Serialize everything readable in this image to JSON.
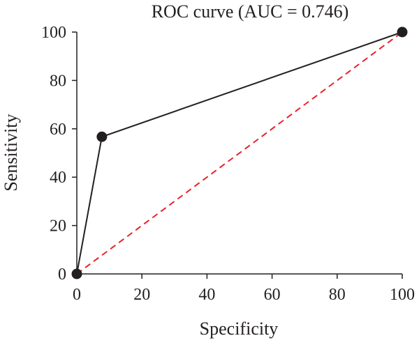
{
  "chart_data": {
    "type": "line",
    "title": "ROC curve (AUC = 0.746)",
    "xlabel": "Specificity",
    "ylabel": "Sensitivity",
    "xlim": [
      0,
      100
    ],
    "ylim": [
      0,
      100
    ],
    "xticks": [
      0,
      20,
      40,
      60,
      80,
      100
    ],
    "yticks": [
      0,
      20,
      40,
      60,
      80,
      100
    ],
    "grid": false,
    "series": [
      {
        "style": "solid-with-markers",
        "color": "#231f20",
        "x": [
          0,
          7.7,
          100
        ],
        "y": [
          0,
          56.7,
          100
        ]
      },
      {
        "style": "dashed-reference",
        "color": "#e8212a",
        "x": [
          0,
          100
        ],
        "y": [
          0,
          100
        ]
      }
    ]
  }
}
